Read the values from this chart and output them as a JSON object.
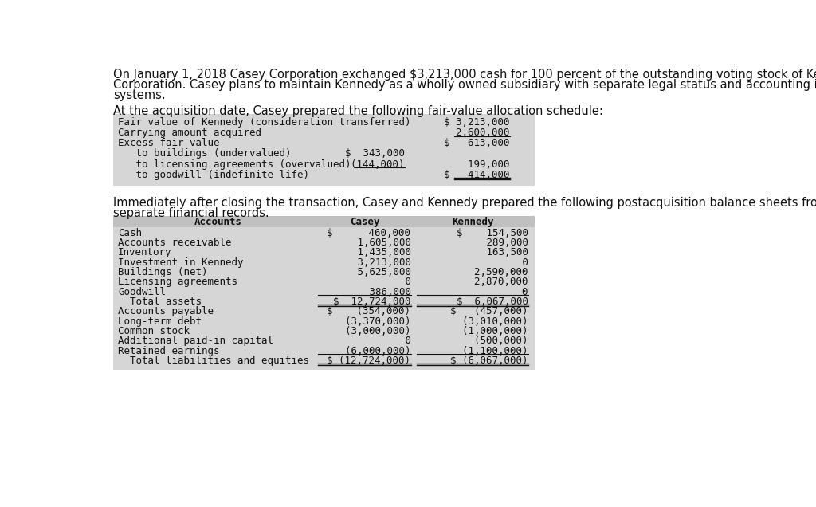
{
  "intro_line1": "On January 1, 2018 Casey Corporation exchanged $3,213,000 cash for 100 percent of the outstanding voting stock of Kennedy",
  "intro_line2": "Corporation. Casey plans to maintain Kennedy as a wholly owned subsidiary with separate legal status and accounting information",
  "intro_line3": "systems.",
  "acq_text": "At the acquisition date, Casey prepared the following fair-value allocation schedule:",
  "post_line1": "Immediately after closing the transaction, Casey and Kennedy prepared the following postacquisition balance sheets from their",
  "post_line2": "separate financial records.",
  "table1_bg": "#d6d6d6",
  "table2_header_bg": "#c0c0c0",
  "table2_bg": "#d6d6d6",
  "table1_rows": [
    {
      "label": "Fair value of Kennedy (consideration transferred)",
      "col1": "",
      "col2": "$ 3,213,000",
      "ul1": false,
      "ul2": false
    },
    {
      "label": "Carrying amount acquired",
      "col1": "",
      "col2": "  2,600,000",
      "ul1": false,
      "ul2": true
    },
    {
      "label": "Excess fair value",
      "col1": "",
      "col2": "$   613,000",
      "ul1": false,
      "ul2": false
    },
    {
      "label": "   to buildings (undervalued)",
      "col1": "$  343,000",
      "col2": "",
      "ul1": false,
      "ul2": false
    },
    {
      "label": "   to licensing agreements (overvalued)",
      "col1": "  (144,000)",
      "col2": "    199,000",
      "ul1": true,
      "ul2": false
    },
    {
      "label": "   to goodwill (indefinite life)",
      "col1": "",
      "col2": "$   414,000",
      "ul1": false,
      "ul2": true,
      "double_ul2": true
    }
  ],
  "table2_header": [
    "Accounts",
    "Casey",
    "Kennedy"
  ],
  "table2_rows": [
    {
      "label": "Cash",
      "casey": "$      460,000",
      "kennedy": "$    154,500",
      "ul_c": false,
      "ul_k": false,
      "bold": false
    },
    {
      "label": "Accounts receivable",
      "casey": "   1,605,000",
      "kennedy": "     289,000",
      "ul_c": false,
      "ul_k": false,
      "bold": false
    },
    {
      "label": "Inventory",
      "casey": "   1,435,000",
      "kennedy": "     163,500",
      "ul_c": false,
      "ul_k": false,
      "bold": false
    },
    {
      "label": "Investment in Kennedy",
      "casey": "   3,213,000",
      "kennedy": "           0",
      "ul_c": false,
      "ul_k": false,
      "bold": false
    },
    {
      "label": "Buildings (net)",
      "casey": "   5,625,000",
      "kennedy": "  2,590,000",
      "ul_c": false,
      "ul_k": false,
      "bold": false
    },
    {
      "label": "Licensing agreements",
      "casey": "           0",
      "kennedy": "  2,870,000",
      "ul_c": false,
      "ul_k": false,
      "bold": false
    },
    {
      "label": "Goodwill",
      "casey": "     386,000",
      "kennedy": "          0",
      "ul_c": true,
      "ul_k": true,
      "bold": false
    },
    {
      "label": "  Total assets",
      "casey": "$  12,724,000",
      "kennedy": "$  6,067,000",
      "ul_c": true,
      "ul_k": true,
      "bold": false,
      "double": true
    },
    {
      "label": "Accounts payable",
      "casey": "$    (354,000)",
      "kennedy": "$   (457,000)",
      "ul_c": false,
      "ul_k": false,
      "bold": false
    },
    {
      "label": "Long-term debt",
      "casey": "  (3,370,000)",
      "kennedy": "  (3,010,000)",
      "ul_c": false,
      "ul_k": false,
      "bold": false
    },
    {
      "label": "Common stock",
      "casey": "  (3,000,000)",
      "kennedy": "  (1,000,000)",
      "ul_c": false,
      "ul_k": false,
      "bold": false
    },
    {
      "label": "Additional paid-in capital",
      "casey": "           0",
      "kennedy": "    (500,000)",
      "ul_c": false,
      "ul_k": false,
      "bold": false
    },
    {
      "label": "Retained earnings",
      "casey": "  (6,000,000)",
      "kennedy": "  (1,100,000)",
      "ul_c": true,
      "ul_k": true,
      "bold": false
    },
    {
      "label": "  Total liabilities and equities",
      "casey": "$ (12,724,000)",
      "kennedy": "$ (6,067,000)",
      "ul_c": true,
      "ul_k": true,
      "bold": false,
      "double": true
    }
  ],
  "fs_body": 10.5,
  "fs_table": 9.0,
  "mono_font": "DejaVu Sans Mono",
  "sans_font": "DejaVu Sans",
  "text_color": "#111111"
}
